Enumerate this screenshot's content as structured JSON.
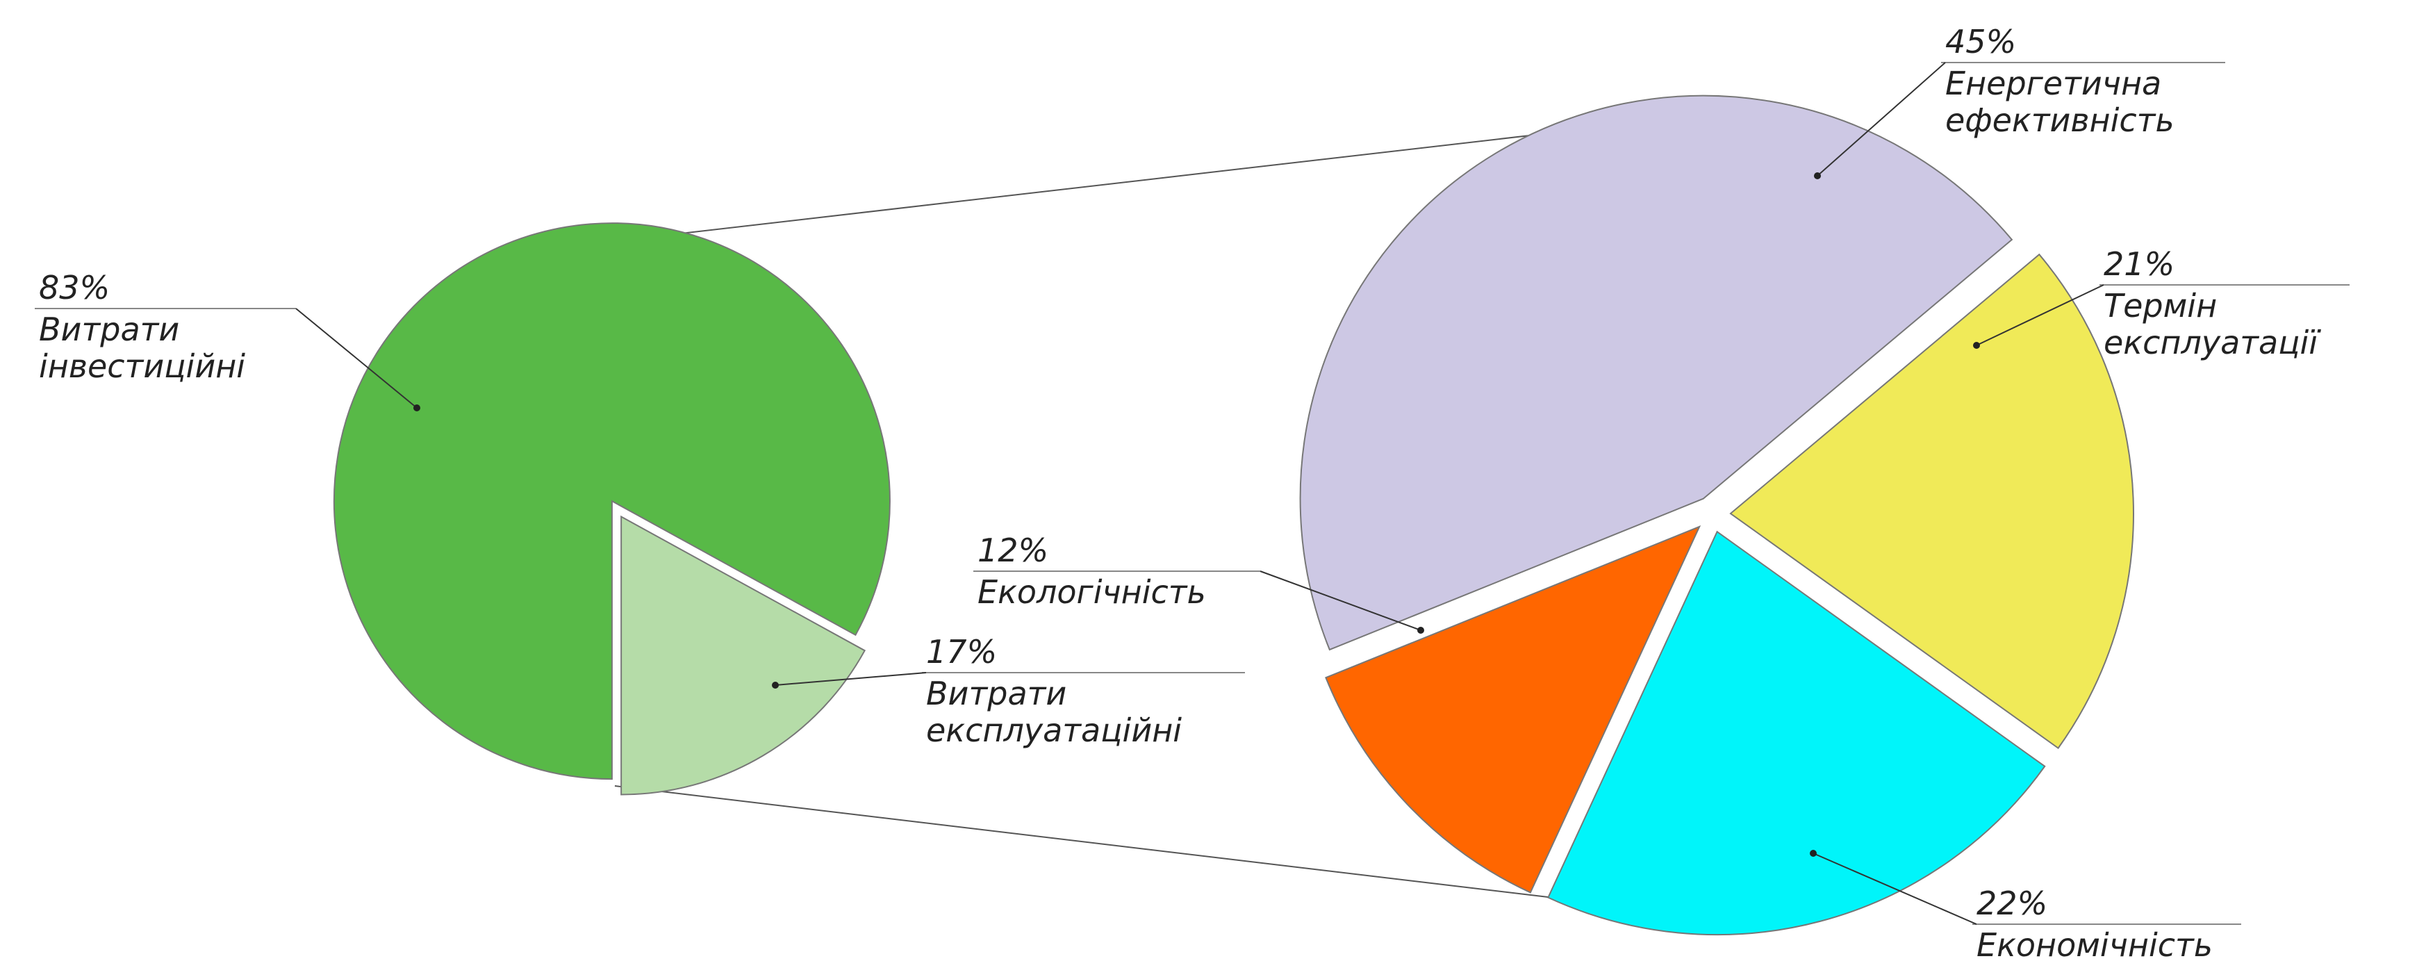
{
  "chart_data": [
    {
      "type": "pie",
      "categories": [
        "Витрати інвестиційні",
        "Витрати експлуатаційні"
      ],
      "values": [
        83,
        17
      ],
      "value_labels": [
        "83%",
        "17%"
      ],
      "colors": [
        "#58b947",
        "#b5dca8"
      ]
    },
    {
      "type": "pie",
      "categories": [
        "Енергетична ефективність",
        "Термін експлуатації",
        "Економічність",
        "Екологічність"
      ],
      "values": [
        45,
        21,
        22,
        12
      ],
      "value_labels": [
        "45%",
        "21%",
        "22%",
        "12%"
      ],
      "colors": [
        "#cdc8e4",
        "#f0ea58",
        "#00f5fa",
        "#ff6600"
      ]
    }
  ]
}
